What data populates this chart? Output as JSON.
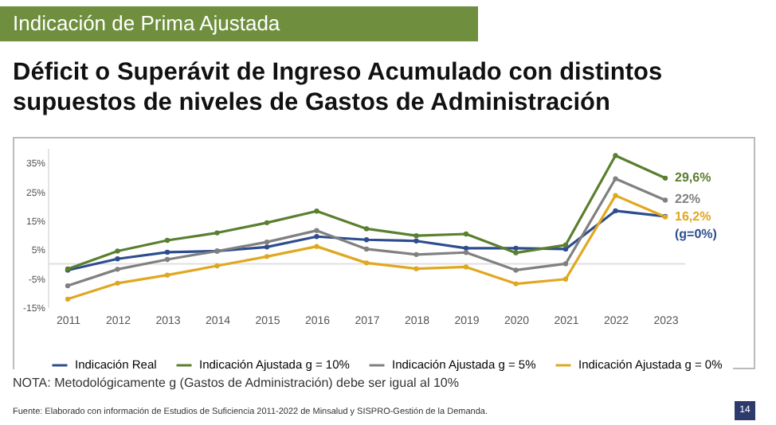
{
  "chart_data": {
    "type": "line",
    "title": "Indicación de Prima Ajustada",
    "subtitle": "Déficit o Superávit de Ingreso Acumulado con distintos supuestos de niveles de Gastos de Administración",
    "categories": [
      "2011",
      "2012",
      "2013",
      "2014",
      "2015",
      "2016",
      "2017",
      "2018",
      "2019",
      "2020",
      "2021",
      "2022",
      "2023"
    ],
    "series": [
      {
        "name": "Indicación Real",
        "color": "#2e4d8f",
        "values": [
          -2.2,
          1.7,
          4.0,
          4.4,
          5.8,
          9.4,
          8.3,
          7.9,
          5.4,
          5.4,
          5.1,
          18.3,
          16.4
        ]
      },
      {
        "name": "Indicación Ajustada g = 10%",
        "color": "#5a7f2e",
        "values": [
          -1.8,
          4.4,
          8.1,
          10.7,
          14.2,
          18.2,
          12.1,
          9.7,
          10.3,
          3.8,
          6.5,
          37.4,
          29.6
        ],
        "value_labels": [
          null,
          null,
          null,
          null,
          null,
          null,
          null,
          null,
          null,
          null,
          null,
          null,
          "29,6%"
        ]
      },
      {
        "name": "Indicación Ajustada g = 5%",
        "color": "#808080",
        "values": [
          -7.6,
          -1.9,
          1.5,
          4.4,
          7.5,
          11.5,
          5.1,
          3.2,
          3.9,
          -2.2,
          0.0,
          29.4,
          22
        ],
        "value_labels": [
          null,
          null,
          null,
          null,
          null,
          null,
          null,
          null,
          null,
          null,
          null,
          null,
          "22%"
        ]
      },
      {
        "name": "Indicación Ajustada g = 0%",
        "color": "#e0a820",
        "values": [
          -12.2,
          -6.7,
          -3.9,
          -0.7,
          2.5,
          6.0,
          0.3,
          -1.7,
          -1.1,
          -6.9,
          -5.3,
          23.6,
          16.2
        ],
        "value_labels": [
          null,
          null,
          null,
          null,
          null,
          null,
          null,
          null,
          null,
          null,
          null,
          null,
          "16,2%"
        ]
      }
    ],
    "ylim": [
      -15,
      40
    ],
    "yticks": [
      {
        "value": -15,
        "label": "-15%"
      },
      {
        "value": -5,
        "label": "-5%"
      },
      {
        "value": 5,
        "label": "5%"
      },
      {
        "value": 15,
        "label": "15%"
      },
      {
        "value": 25,
        "label": "25%"
      },
      {
        "value": 35,
        "label": "35%"
      }
    ],
    "marker": "circle",
    "legend": "bottom",
    "annotations": [
      {
        "text": "(g=0%)",
        "x": "2023",
        "y": 16.2
      },
      "NOTA: Metodológicamente g (Gastos de Administración) debe ser igual al 10%",
      "Fuente: Elaborado con información de Estudios de Suficiencia 2011-2022 de Minsalud y SISPRO-Gestión de la Demanda.",
      "14"
    ]
  }
}
